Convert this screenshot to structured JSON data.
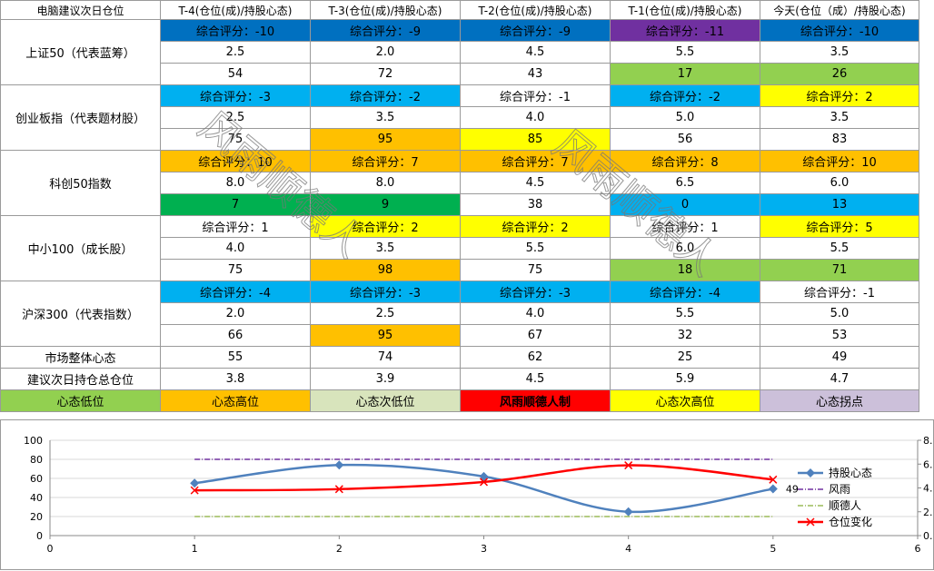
{
  "table": {
    "header": [
      "电脑建议次日仓位",
      "T-4(仓位(成)/持股心态)",
      "T-3(仓位(成)/持股心态)",
      "T-2(仓位(成)/持股心态)",
      "T-1(仓位(成)/持股心态)",
      "今天(仓位（成）/持股心态)"
    ],
    "groups": [
      {
        "name": "上证50（代表蓝筹）",
        "scores": [
          "综合评分：-10",
          "综合评分：-9",
          "综合评分：-9",
          "综合评分：-11",
          "综合评分：-10"
        ],
        "score_colors": [
          "#0070c0",
          "#0070c0",
          "#0070c0",
          "#7030a0",
          "#0070c0"
        ],
        "positions": [
          "2.5",
          "2.0",
          "4.5",
          "5.5",
          "3.5"
        ],
        "moods": [
          "54",
          "72",
          "43",
          "17",
          "26"
        ],
        "mood_colors": [
          "#ffffff",
          "#ffffff",
          "#ffffff",
          "#92d050",
          "#92d050"
        ]
      },
      {
        "name": "创业板指（代表题材股）",
        "scores": [
          "综合评分：-3",
          "综合评分：-2",
          "综合评分：-1",
          "综合评分：-2",
          "综合评分：2"
        ],
        "score_colors": [
          "#00b0f0",
          "#00b0f0",
          "#ffffff",
          "#00b0f0",
          "#ffff00"
        ],
        "positions": [
          "2.5",
          "3.5",
          "4.0",
          "5.0",
          "3.5"
        ],
        "moods": [
          "75",
          "95",
          "85",
          "56",
          "83"
        ],
        "mood_colors": [
          "#ffffff",
          "#ffc000",
          "#ffff00",
          "#ffffff",
          "#ffffff"
        ]
      },
      {
        "name": "科创50指数",
        "scores": [
          "综合评分：10",
          "综合评分：7",
          "综合评分：7",
          "综合评分：8",
          "综合评分：10"
        ],
        "score_colors": [
          "#ffc000",
          "#ffc000",
          "#ffc000",
          "#ffc000",
          "#ffc000"
        ],
        "positions": [
          "8.0",
          "8.0",
          "4.5",
          "6.5",
          "6.0"
        ],
        "moods": [
          "7",
          "9",
          "38",
          "0",
          "13"
        ],
        "mood_colors": [
          "#00b050",
          "#00b050",
          "#ffffff",
          "#00b0f0",
          "#00b0f0"
        ]
      },
      {
        "name": "中小100（成长股）",
        "scores": [
          "综合评分：1",
          "综合评分：2",
          "综合评分：2",
          "综合评分：1",
          "综合评分：5"
        ],
        "score_colors": [
          "#ffffff",
          "#ffff00",
          "#ffff00",
          "#ffffff",
          "#ffff00"
        ],
        "positions": [
          "4.0",
          "3.5",
          "5.5",
          "6.0",
          "5.5"
        ],
        "moods": [
          "75",
          "98",
          "75",
          "18",
          "71"
        ],
        "mood_colors": [
          "#ffffff",
          "#ffc000",
          "#ffffff",
          "#92d050",
          "#92d050"
        ]
      },
      {
        "name": "沪深300（代表指数）",
        "scores": [
          "综合评分：-4",
          "综合评分：-3",
          "综合评分：-3",
          "综合评分：-4",
          "综合评分：-1"
        ],
        "score_colors": [
          "#00b0f0",
          "#00b0f0",
          "#00b0f0",
          "#00b0f0",
          "#ffffff"
        ],
        "positions": [
          "2.0",
          "2.5",
          "4.0",
          "5.5",
          "5.0"
        ],
        "moods": [
          "66",
          "95",
          "67",
          "32",
          "53"
        ],
        "mood_colors": [
          "#ffffff",
          "#ffc000",
          "#ffffff",
          "#ffffff",
          "#ffffff"
        ]
      }
    ],
    "summary": [
      {
        "label": "市场整体心态",
        "values": [
          "55",
          "74",
          "62",
          "25",
          "49"
        ]
      },
      {
        "label": "建议次日持仓总仓位",
        "values": [
          "3.8",
          "3.9",
          "4.5",
          "5.9",
          "4.7"
        ]
      }
    ],
    "legend": [
      {
        "text": "心态低位",
        "color": "#92d050"
      },
      {
        "text": "心态高位",
        "color": "#ffc000"
      },
      {
        "text": "心态次低位",
        "color": "#d8e4bc"
      },
      {
        "text": "风雨顺德人制",
        "color": "#ff0000"
      },
      {
        "text": "心态次高位",
        "color": "#ffff00"
      },
      {
        "text": "心态拐点",
        "color": "#ccc0da"
      }
    ]
  },
  "watermark": "风雨顺德人",
  "chart_data": {
    "type": "line",
    "x": [
      1,
      2,
      3,
      4,
      5
    ],
    "xlim": [
      0,
      6
    ],
    "xticks": [
      0,
      1,
      2,
      3,
      4,
      5,
      6
    ],
    "ylim": [
      0,
      100
    ],
    "yticks": [
      0,
      20,
      40,
      60,
      80,
      100
    ],
    "y2lim": [
      0,
      8
    ],
    "y2ticks": [
      {
        "value": 0,
        "label": "0."
      },
      {
        "value": 2,
        "label": "2."
      },
      {
        "value": 4,
        "label": "4."
      },
      {
        "value": 6,
        "label": "6."
      },
      {
        "value": 8,
        "label": "8."
      }
    ],
    "grid": true,
    "legend": "right",
    "series": [
      {
        "name": "持股心态",
        "color": "#4f81bd",
        "values": [
          55,
          74,
          62,
          25,
          49
        ],
        "marker": "diamond",
        "smooth": true,
        "value_labels": [
          null,
          null,
          null,
          null,
          "49"
        ]
      },
      {
        "name": "风雨",
        "color": "#7030a0",
        "values": [
          80,
          80,
          80,
          80,
          80
        ],
        "dash": "6 2 1 2"
      },
      {
        "name": "顺德人",
        "color": "#9bbb59",
        "values": [
          20,
          20,
          20,
          20,
          20
        ],
        "dash": "6 2 1 2"
      },
      {
        "name": "仓位变化",
        "color": "#ff0000",
        "values": [
          3.8,
          3.9,
          4.5,
          5.9,
          4.7
        ],
        "axis": "y2",
        "marker": "x",
        "smooth": true
      }
    ]
  }
}
